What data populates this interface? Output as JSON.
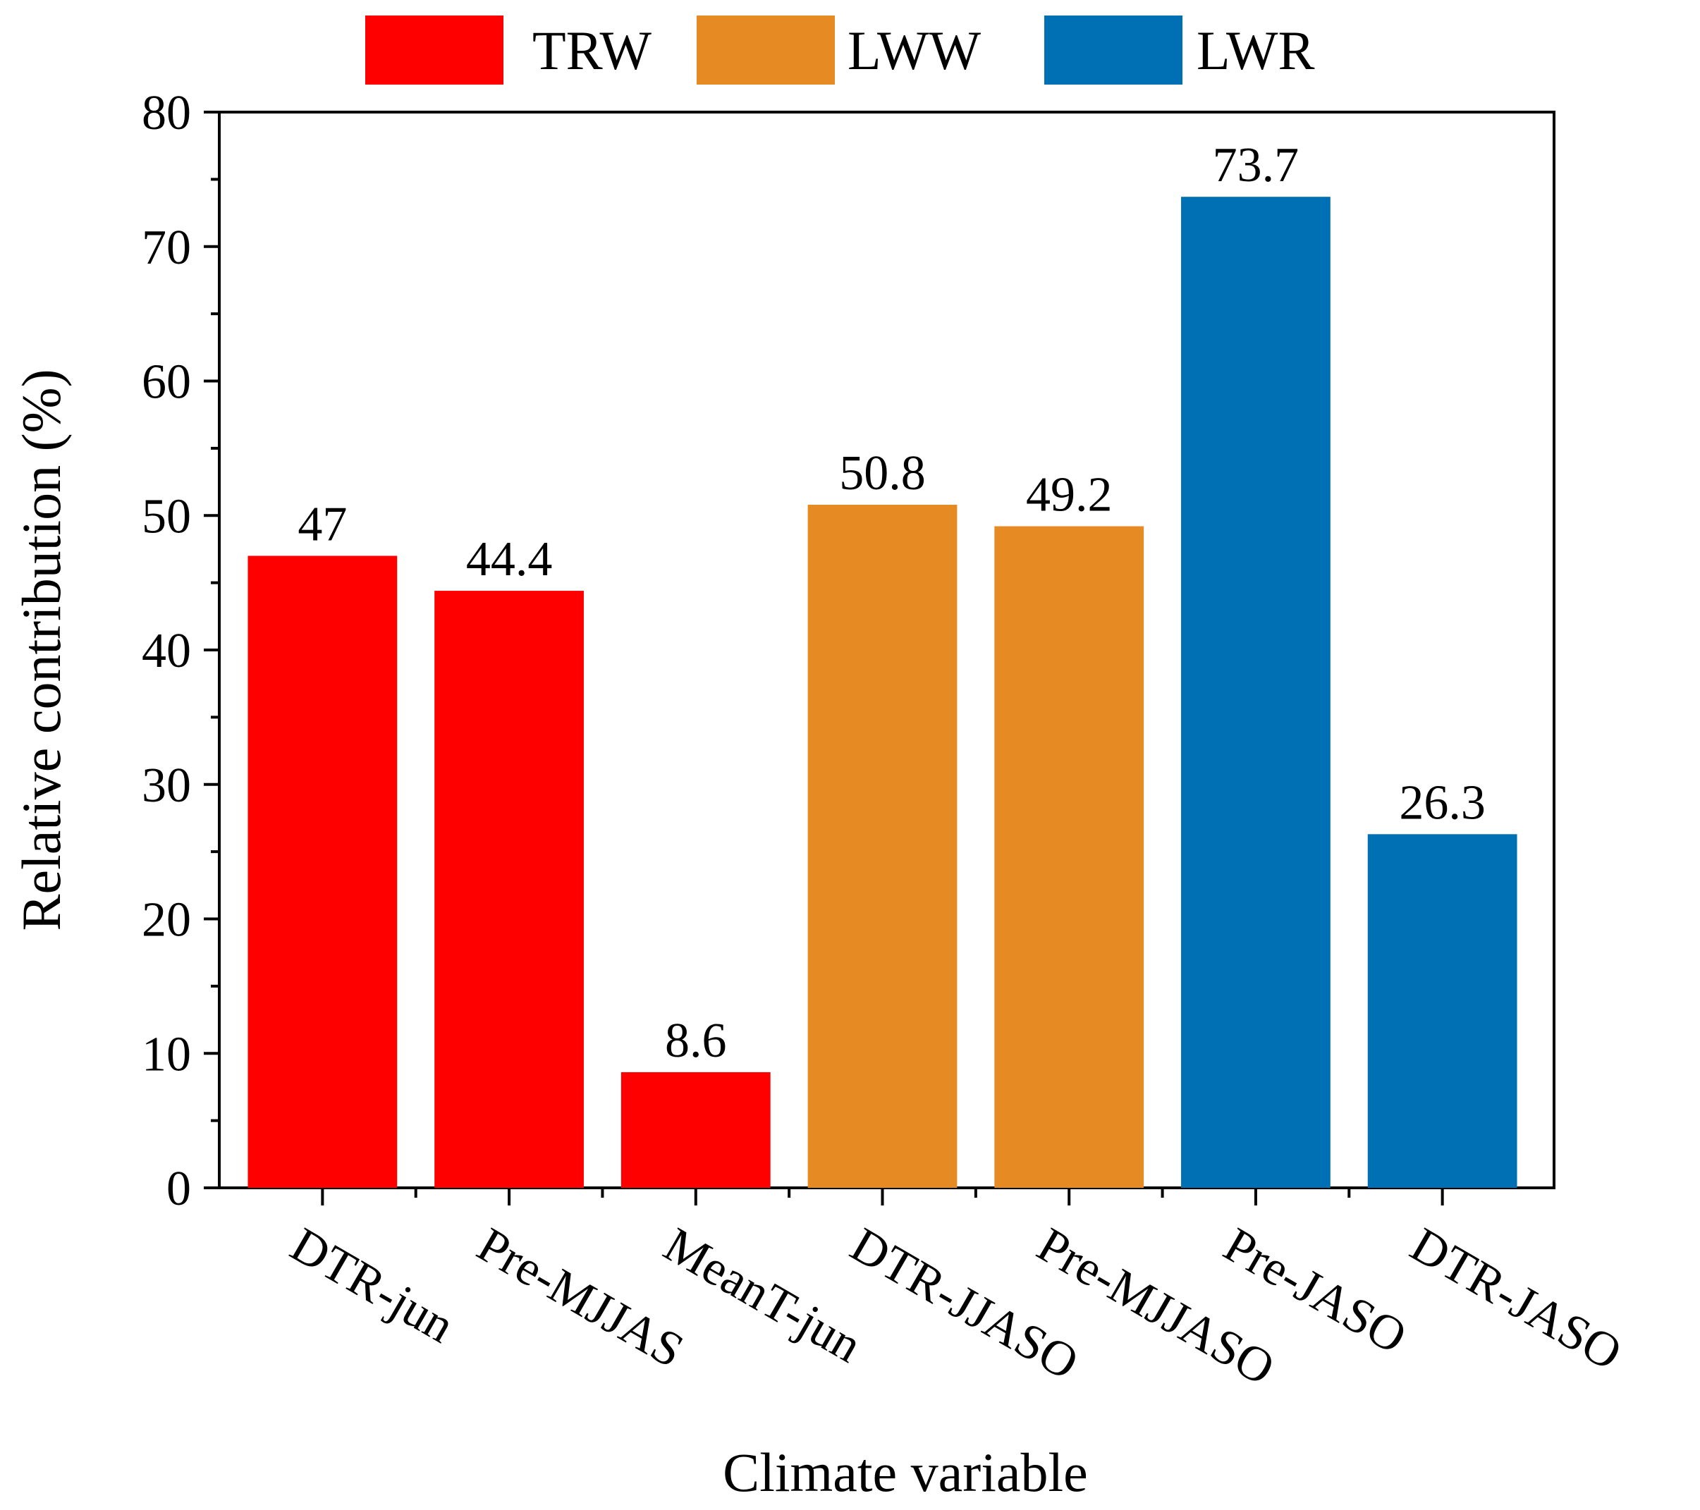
{
  "chart_data": {
    "type": "bar",
    "title": "",
    "xlabel": "Climate variable",
    "ylabel": "Relative contribution (%)",
    "ylim": [
      0,
      80
    ],
    "yticks": [
      0,
      10,
      20,
      30,
      40,
      50,
      60,
      70,
      80
    ],
    "categories": [
      "DTR-jun",
      "Pre-MJJAS",
      "MeanT-jun",
      "DTR-JJASO",
      "Pre-MJJASO",
      "Pre-JASO",
      "DTR-JASO"
    ],
    "values": [
      47,
      44.4,
      8.6,
      50.8,
      49.2,
      73.7,
      26.3
    ],
    "value_labels": [
      "47",
      "44.4",
      "8.6",
      "50.8",
      "49.2",
      "73.7",
      "26.3"
    ],
    "groups": [
      "TRW",
      "TRW",
      "TRW",
      "LWW",
      "LWW",
      "LWR",
      "LWR"
    ],
    "legend": [
      {
        "name": "TRW",
        "color": "#ff0000"
      },
      {
        "name": "LWW",
        "color": "#e68a23"
      },
      {
        "name": "LWR",
        "color": "#0070b4"
      }
    ],
    "legend_position": "top-center",
    "grid": false
  }
}
